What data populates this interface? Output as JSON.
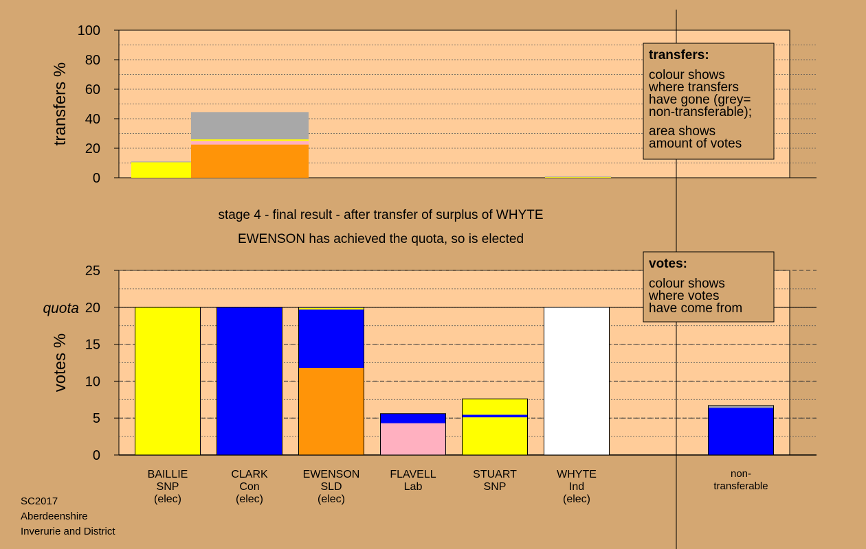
{
  "titles": {
    "stage": "stage 4 - final result - after transfer of surplus of WHYTE",
    "status": "EWENSON has achieved the quota, so is elected"
  },
  "footer": [
    "SC2017",
    "Aberdeenshire",
    "Inverurie and District"
  ],
  "colors": {
    "background": "#d4a772",
    "plot_area": "#ffcc99",
    "snp": "#ffff00",
    "con": "#0000ff",
    "sld": "#ff9408",
    "lab": "#ffb0c0",
    "ind": "#ffffff",
    "nontransferable": "#a8a8a8"
  },
  "chart_data": [
    {
      "type": "bar",
      "name_id": "transfers-chart",
      "ylabel": "transfers %",
      "ylim": [
        0,
        100
      ],
      "yticks": [
        0,
        20,
        40,
        60,
        80,
        100
      ],
      "grid": true,
      "legend": {
        "title": "transfers:",
        "lines": [
          "colour shows",
          "where transfers",
          "have gone (grey=",
          "non-transferable);"
        ],
        "lines2": [
          "area shows",
          "amount of votes"
        ]
      },
      "bars": [
        {
          "target": "BAILLIE",
          "segments": [
            {
              "party": "snp",
              "value": 10.5
            },
            {
              "party": "nontransferable",
              "value": 0.5
            }
          ]
        },
        {
          "target": "EWENSON",
          "segments": [
            {
              "party": "sld",
              "value": 22.5
            },
            {
              "party": "lab",
              "value": 2.5
            },
            {
              "party": "snp",
              "value": 1.0
            },
            {
              "party": "nontransferable",
              "value": 18.5
            }
          ]
        },
        {
          "target": "WHYTE",
          "segments": [
            {
              "party": "snp",
              "value": 0.4
            },
            {
              "party": "nontransferable",
              "value": 0.4
            }
          ]
        }
      ]
    },
    {
      "type": "bar",
      "name_id": "votes-chart",
      "ylabel": "votes %",
      "ylim": [
        0,
        25
      ],
      "yticks": [
        0,
        5,
        10,
        15,
        20,
        25
      ],
      "quota": 20,
      "quota_label": "quota",
      "grid": true,
      "legend": {
        "title": "votes:",
        "lines": [
          "colour shows",
          "where votes",
          "have come from"
        ]
      },
      "categories": [
        {
          "name": "BAILLIE",
          "party": "SNP",
          "status": "(elec)"
        },
        {
          "name": "CLARK",
          "party": "Con",
          "status": "(elec)"
        },
        {
          "name": "EWENSON",
          "party": "SLD",
          "status": "(elec)"
        },
        {
          "name": "FLAVELL",
          "party": "Lab",
          "status": ""
        },
        {
          "name": "STUART",
          "party": "SNP",
          "status": ""
        },
        {
          "name": "WHYTE",
          "party": "Ind",
          "status": "(elec)"
        },
        {
          "name": "non-",
          "party": "transferable",
          "status": ""
        }
      ],
      "bars": [
        {
          "candidate": "BAILLIE",
          "segments": [
            {
              "party": "snp",
              "value": 20.0
            }
          ]
        },
        {
          "candidate": "CLARK",
          "segments": [
            {
              "party": "con",
              "value": 20.0
            }
          ]
        },
        {
          "candidate": "EWENSON",
          "segments": [
            {
              "party": "sld",
              "value": 11.8
            },
            {
              "party": "con",
              "value": 7.9
            },
            {
              "party": "snp",
              "value": 0.2
            },
            {
              "party": "nontransferable",
              "value": 0.1
            }
          ]
        },
        {
          "candidate": "FLAVELL",
          "segments": [
            {
              "party": "lab",
              "value": 4.3
            },
            {
              "party": "con",
              "value": 1.3
            }
          ]
        },
        {
          "candidate": "STUART",
          "segments": [
            {
              "party": "snp",
              "value": 5.1
            },
            {
              "party": "con",
              "value": 0.35
            },
            {
              "party": "snp",
              "value": 2.15
            }
          ]
        },
        {
          "candidate": "WHYTE",
          "segments": [
            {
              "party": "ind",
              "value": 20.0
            }
          ]
        },
        {
          "candidate": "non-transferable",
          "segments": [
            {
              "party": "con",
              "value": 6.4
            },
            {
              "party": "nontransferable",
              "value": 0.3
            }
          ]
        }
      ]
    }
  ]
}
